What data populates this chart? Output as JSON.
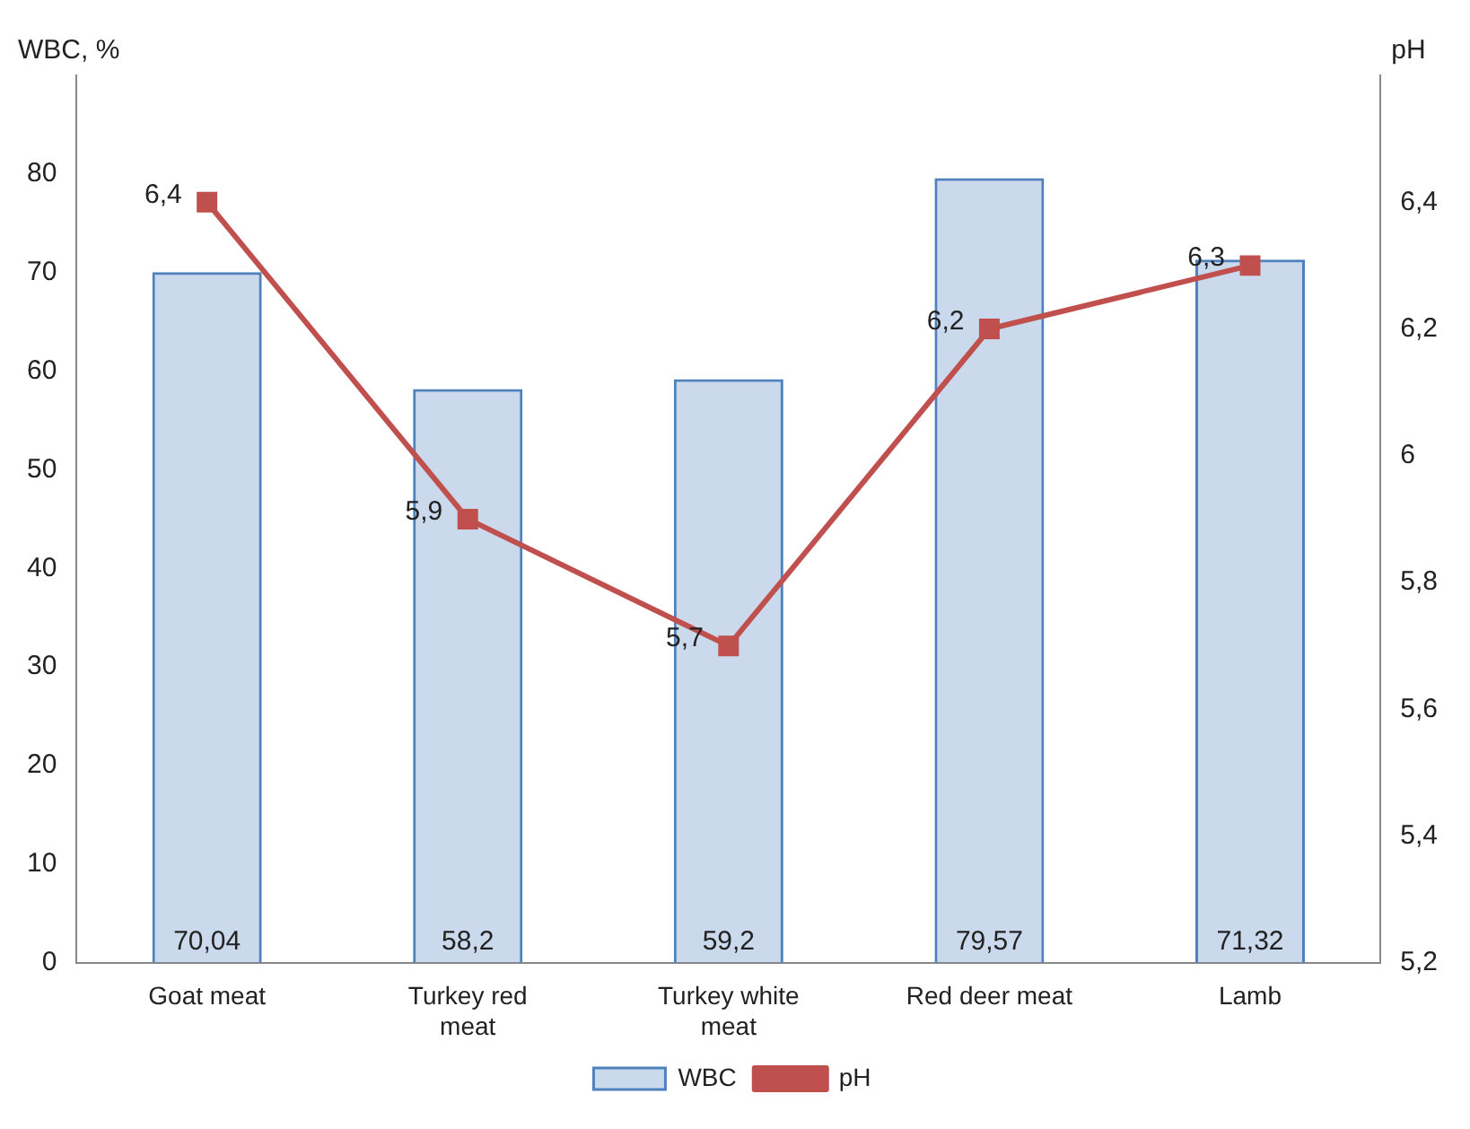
{
  "chart_data": {
    "type": "bar",
    "categories": [
      "Goat meat",
      "Turkey red meat",
      "Turkey white meat",
      "Red deer meat",
      "Lamb"
    ],
    "ylabel": "WBC, %",
    "y2label": "pH",
    "series": [
      {
        "name": "WBC",
        "color": "#4f81bd",
        "values": [
          70.04,
          58.2,
          59.2,
          79.57,
          71.32
        ],
        "value_labels": [
          "70,04",
          "58,2",
          "59,2",
          "79,57",
          "71,32"
        ]
      },
      {
        "name": "pH",
        "type": "line",
        "axis": "y2",
        "color": "#c0504d",
        "values": [
          6.4,
          5.9,
          5.7,
          6.2,
          6.3
        ],
        "value_labels": [
          "6,4",
          "5,9",
          "5,7",
          "6,2",
          "6,3"
        ]
      }
    ],
    "ylim": [
      0,
      90
    ],
    "yticks": [
      0,
      10,
      20,
      30,
      40,
      50,
      60,
      70,
      80
    ],
    "y2lim": [
      5.2,
      6.6
    ],
    "y2ticks": [
      {
        "value": 5.2,
        "label": "5,2"
      },
      {
        "value": 5.4,
        "label": "5,4"
      },
      {
        "value": 5.6,
        "label": "5,6"
      },
      {
        "value": 5.8,
        "label": "5,8"
      },
      {
        "value": 6,
        "label": "6"
      },
      {
        "value": 6.2,
        "label": "6,2"
      },
      {
        "value": 6.4,
        "label": "6,4"
      }
    ],
    "marker": "square",
    "grid": false,
    "legend": "bottom"
  }
}
